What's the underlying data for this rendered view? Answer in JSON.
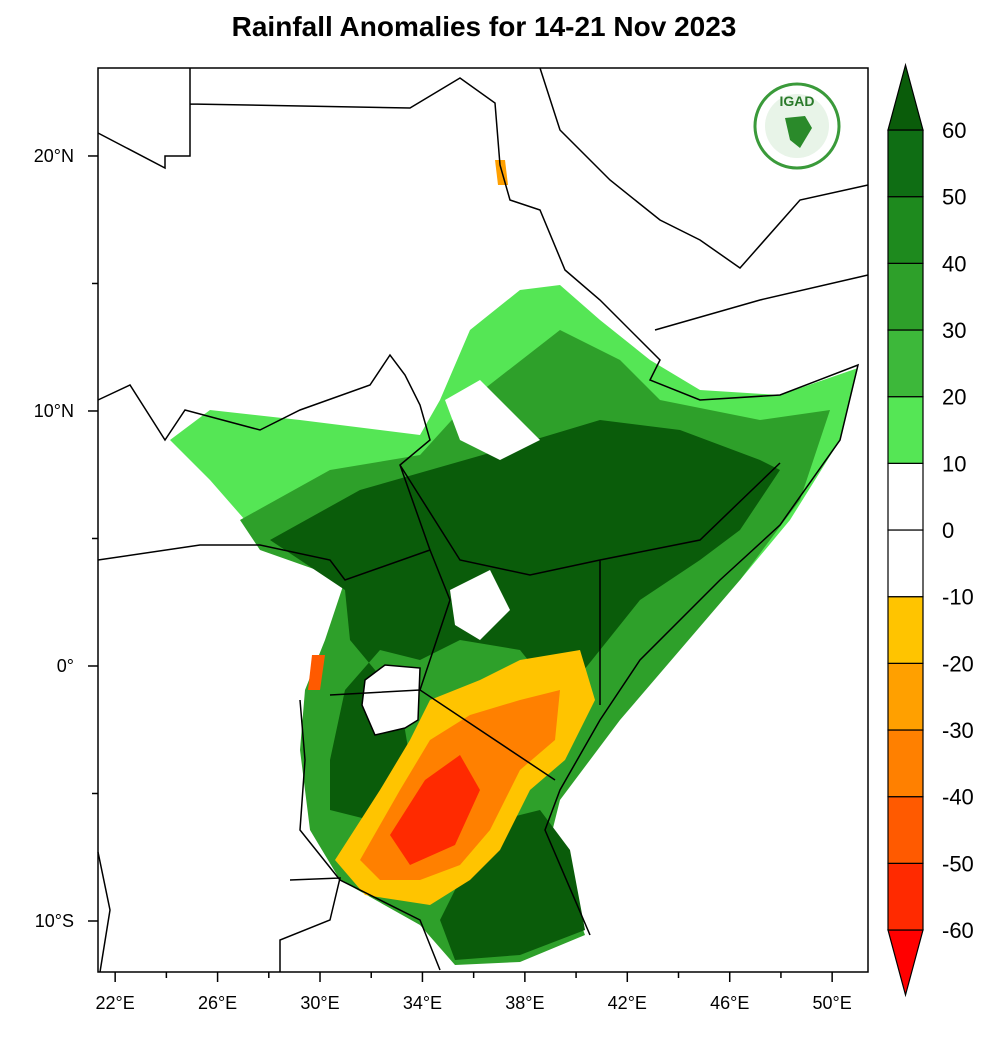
{
  "title": "Rainfall Anomalies for 14-21 Nov 2023",
  "map": {
    "xlim": [
      21.33,
      51.4
    ],
    "ylim": [
      -12,
      23.45
    ],
    "xticks": [
      {
        "value": 22,
        "label": "22°E"
      },
      {
        "value": 26,
        "label": "26°E"
      },
      {
        "value": 30,
        "label": "30°E"
      },
      {
        "value": 34,
        "label": "34°E"
      },
      {
        "value": 38,
        "label": "38°E"
      },
      {
        "value": 42,
        "label": "42°E"
      },
      {
        "value": 46,
        "label": "46°E"
      },
      {
        "value": 50,
        "label": "50°E"
      }
    ],
    "xminorticks": [
      24,
      28,
      32,
      36,
      40,
      44,
      48
    ],
    "yticks": [
      {
        "value": 20,
        "label": "20°N"
      },
      {
        "value": 10,
        "label": "10°N"
      },
      {
        "value": 0,
        "label": "0°"
      },
      {
        "value": -10,
        "label": "10°S"
      }
    ],
    "yminorticks": [
      15,
      5,
      -5
    ]
  },
  "colorbar": {
    "levels": [
      -60,
      -50,
      -40,
      -30,
      -20,
      -10,
      0,
      10,
      20,
      30,
      40,
      50,
      60
    ],
    "colors": [
      "#ff0000",
      "#ff2a00",
      "#ff5a00",
      "#ff8000",
      "#ffa000",
      "#ffc400",
      "#ffffff",
      "#ffffff",
      "#55e655",
      "#3db83a",
      "#2ea02a",
      "#1e8a1e",
      "#0f6e14",
      "#0a5c0a"
    ]
  },
  "logo": {
    "text": "IGAD"
  }
}
